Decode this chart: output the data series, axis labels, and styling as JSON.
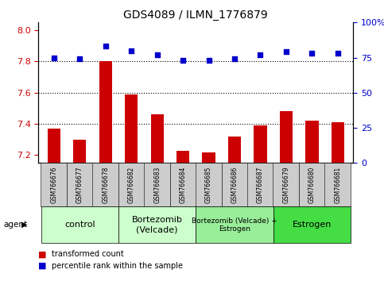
{
  "title": "GDS4089 / ILMN_1776879",
  "samples": [
    "GSM766676",
    "GSM766677",
    "GSM766678",
    "GSM766682",
    "GSM766683",
    "GSM766684",
    "GSM766685",
    "GSM766686",
    "GSM766687",
    "GSM766679",
    "GSM766680",
    "GSM766681"
  ],
  "transformed_count": [
    7.37,
    7.3,
    7.8,
    7.59,
    7.46,
    7.23,
    7.22,
    7.32,
    7.39,
    7.48,
    7.42,
    7.41
  ],
  "percentile_rank": [
    75,
    74,
    83,
    80,
    77,
    73,
    73,
    74,
    77,
    79,
    78,
    78
  ],
  "ylim_left": [
    7.15,
    8.05
  ],
  "ylim_right": [
    0,
    100
  ],
  "yticks_left": [
    7.2,
    7.4,
    7.6,
    7.8,
    8.0
  ],
  "yticks_right": [
    0,
    25,
    50,
    75,
    100
  ],
  "group_defs": [
    {
      "start": 0,
      "end": 2,
      "label": "control",
      "color": "#ccffcc",
      "fontsize": 8
    },
    {
      "start": 3,
      "end": 5,
      "label": "Bortezomib\n(Velcade)",
      "color": "#ccffcc",
      "fontsize": 8
    },
    {
      "start": 6,
      "end": 8,
      "label": "Bortezomib (Velcade) +\nEstrogen",
      "color": "#99ee99",
      "fontsize": 6.5
    },
    {
      "start": 9,
      "end": 11,
      "label": "Estrogen",
      "color": "#44dd44",
      "fontsize": 8
    }
  ],
  "bar_color": "#cc0000",
  "dot_color": "#0000cc",
  "tick_bg_color": "#cccccc",
  "legend_items": [
    "transformed count",
    "percentile rank within the sample"
  ],
  "dotted_lines": [
    7.4,
    7.6,
    7.8
  ],
  "bar_width": 0.5
}
